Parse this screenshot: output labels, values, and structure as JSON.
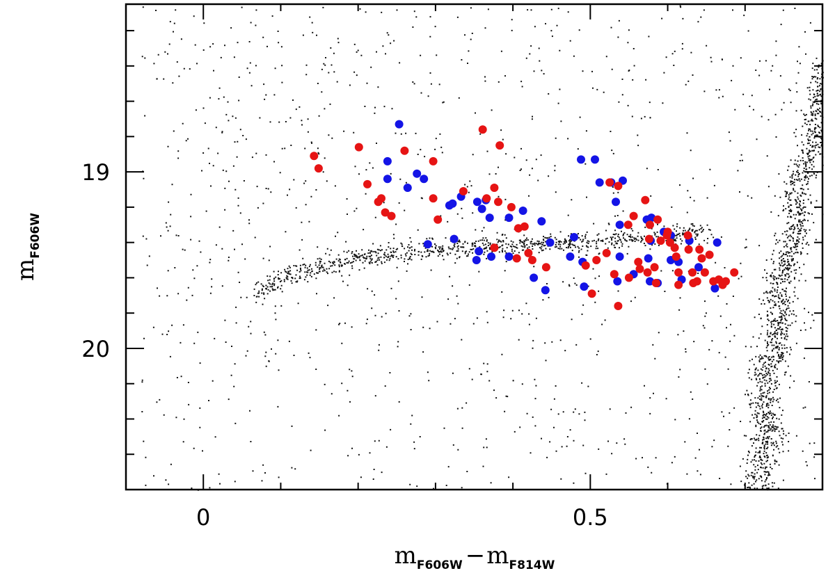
{
  "chart_data": {
    "type": "scatter",
    "xlabel": {
      "main1": "m",
      "sub1": "F606W",
      "sep": "−",
      "main2": "m",
      "sub2": "F814W"
    },
    "ylabel": {
      "main": "m",
      "sub": "F606W"
    },
    "xlim": [
      -0.1,
      0.8
    ],
    "ylim": [
      20.8,
      18.05
    ],
    "y_inverted": true,
    "x_ticks": [
      0,
      0.5
    ],
    "x_tick_labels": [
      "0",
      "0.5"
    ],
    "y_ticks": [
      19,
      20
    ],
    "y_tick_labels": [
      "19",
      "20"
    ],
    "minor_x_ticks": [
      -0.1,
      0.1,
      0.2,
      0.3,
      0.4,
      0.6,
      0.7,
      0.8
    ],
    "minor_y_ticks": [
      18.2,
      18.4,
      18.6,
      18.8,
      19.2,
      19.4,
      19.6,
      19.8,
      20.2,
      20.4,
      20.6,
      20.8
    ],
    "grid": false,
    "legend": "none",
    "series": [
      {
        "color": "#1414e6",
        "points": [
          [
            0.253,
            18.73
          ],
          [
            0.238,
            18.94
          ],
          [
            0.238,
            19.04
          ],
          [
            0.276,
            19.01
          ],
          [
            0.285,
            19.04
          ],
          [
            0.264,
            19.09
          ],
          [
            0.322,
            19.18
          ],
          [
            0.318,
            19.19
          ],
          [
            0.333,
            19.14
          ],
          [
            0.29,
            19.41
          ],
          [
            0.324,
            19.38
          ],
          [
            0.354,
            19.17
          ],
          [
            0.365,
            19.16
          ],
          [
            0.36,
            19.21
          ],
          [
            0.37,
            19.26
          ],
          [
            0.395,
            19.26
          ],
          [
            0.413,
            19.22
          ],
          [
            0.437,
            19.28
          ],
          [
            0.448,
            19.4
          ],
          [
            0.395,
            19.48
          ],
          [
            0.356,
            19.45
          ],
          [
            0.353,
            19.5
          ],
          [
            0.372,
            19.48
          ],
          [
            0.427,
            19.6
          ],
          [
            0.442,
            19.67
          ],
          [
            0.488,
            18.93
          ],
          [
            0.506,
            18.93
          ],
          [
            0.512,
            19.06
          ],
          [
            0.527,
            19.06
          ],
          [
            0.542,
            19.05
          ],
          [
            0.533,
            19.17
          ],
          [
            0.573,
            19.27
          ],
          [
            0.579,
            19.26
          ],
          [
            0.538,
            19.3
          ],
          [
            0.595,
            19.34
          ],
          [
            0.578,
            19.39
          ],
          [
            0.604,
            19.36
          ],
          [
            0.628,
            19.39
          ],
          [
            0.664,
            19.4
          ],
          [
            0.479,
            19.37
          ],
          [
            0.474,
            19.48
          ],
          [
            0.49,
            19.51
          ],
          [
            0.538,
            19.48
          ],
          [
            0.575,
            19.49
          ],
          [
            0.604,
            19.5
          ],
          [
            0.614,
            19.51
          ],
          [
            0.64,
            19.54
          ],
          [
            0.556,
            19.58
          ],
          [
            0.535,
            19.62
          ],
          [
            0.577,
            19.62
          ],
          [
            0.587,
            19.63
          ],
          [
            0.618,
            19.61
          ],
          [
            0.661,
            19.66
          ],
          [
            0.492,
            19.65
          ]
        ]
      },
      {
        "color": "#e61414",
        "points": [
          [
            0.143,
            18.91
          ],
          [
            0.149,
            18.98
          ],
          [
            0.201,
            18.86
          ],
          [
            0.212,
            19.07
          ],
          [
            0.23,
            19.15
          ],
          [
            0.226,
            19.17
          ],
          [
            0.235,
            19.23
          ],
          [
            0.243,
            19.25
          ],
          [
            0.26,
            18.88
          ],
          [
            0.297,
            18.94
          ],
          [
            0.297,
            19.15
          ],
          [
            0.303,
            19.27
          ],
          [
            0.336,
            19.11
          ],
          [
            0.361,
            18.76
          ],
          [
            0.383,
            18.85
          ],
          [
            0.366,
            19.15
          ],
          [
            0.376,
            19.09
          ],
          [
            0.381,
            19.17
          ],
          [
            0.398,
            19.2
          ],
          [
            0.407,
            19.32
          ],
          [
            0.415,
            19.31
          ],
          [
            0.376,
            19.43
          ],
          [
            0.405,
            19.49
          ],
          [
            0.42,
            19.46
          ],
          [
            0.425,
            19.5
          ],
          [
            0.443,
            19.54
          ],
          [
            0.494,
            19.53
          ],
          [
            0.508,
            19.5
          ],
          [
            0.521,
            19.46
          ],
          [
            0.531,
            19.58
          ],
          [
            0.55,
            19.6
          ],
          [
            0.564,
            19.55
          ],
          [
            0.502,
            19.69
          ],
          [
            0.525,
            19.06
          ],
          [
            0.536,
            19.08
          ],
          [
            0.571,
            19.16
          ],
          [
            0.556,
            19.25
          ],
          [
            0.549,
            19.3
          ],
          [
            0.577,
            19.3
          ],
          [
            0.587,
            19.27
          ],
          [
            0.6,
            19.34
          ],
          [
            0.576,
            19.38
          ],
          [
            0.599,
            19.36
          ],
          [
            0.591,
            19.39
          ],
          [
            0.603,
            19.4
          ],
          [
            0.626,
            19.36
          ],
          [
            0.609,
            19.43
          ],
          [
            0.627,
            19.44
          ],
          [
            0.641,
            19.44
          ],
          [
            0.654,
            19.47
          ],
          [
            0.644,
            19.49
          ],
          [
            0.611,
            19.48
          ],
          [
            0.562,
            19.51
          ],
          [
            0.583,
            19.54
          ],
          [
            0.574,
            19.57
          ],
          [
            0.614,
            19.57
          ],
          [
            0.632,
            19.57
          ],
          [
            0.648,
            19.57
          ],
          [
            0.659,
            19.62
          ],
          [
            0.666,
            19.61
          ],
          [
            0.686,
            19.57
          ],
          [
            0.614,
            19.64
          ],
          [
            0.638,
            19.62
          ],
          [
            0.671,
            19.64
          ],
          [
            0.675,
            19.62
          ],
          [
            0.536,
            19.76
          ],
          [
            0.633,
            19.63
          ],
          [
            0.585,
            19.63
          ]
        ]
      }
    ]
  }
}
